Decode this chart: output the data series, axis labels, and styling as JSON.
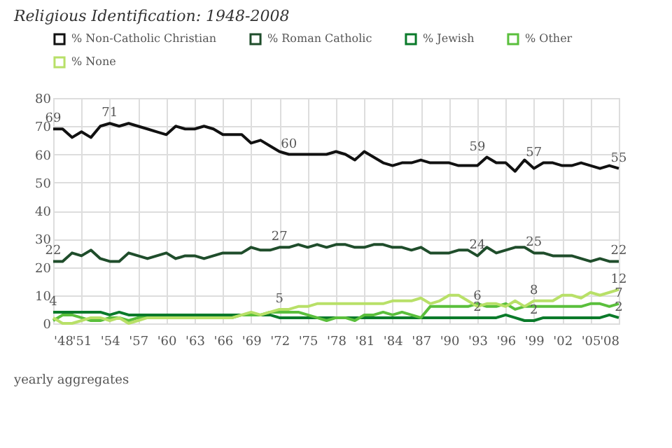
{
  "chart_data": {
    "type": "line",
    "title": "Religious Identification: 1948-2008",
    "x": [
      1948,
      1949,
      1950,
      1951,
      1952,
      1953,
      1954,
      1955,
      1956,
      1957,
      1958,
      1959,
      1960,
      1961,
      1962,
      1963,
      1964,
      1965,
      1966,
      1967,
      1968,
      1969,
      1970,
      1971,
      1972,
      1973,
      1974,
      1975,
      1976,
      1977,
      1978,
      1979,
      1980,
      1981,
      1982,
      1983,
      1984,
      1985,
      1986,
      1987,
      1988,
      1989,
      1990,
      1991,
      1992,
      1993,
      1994,
      1995,
      1996,
      1997,
      1998,
      1999,
      2000,
      2001,
      2002,
      2003,
      2004,
      2005,
      2006,
      2007,
      2008
    ],
    "series": [
      {
        "name": "% Non-Catholic Christian",
        "color": "#111111",
        "values": [
          69,
          69,
          66,
          68,
          66,
          70,
          71,
          70,
          71,
          70,
          69,
          68,
          67,
          70,
          69,
          69,
          70,
          69,
          67,
          67,
          67,
          64,
          65,
          63,
          61,
          60,
          60,
          60,
          60,
          60,
          61,
          60,
          58,
          61,
          59,
          57,
          56,
          57,
          57,
          58,
          57,
          57,
          57,
          56,
          56,
          56,
          59,
          57,
          57,
          54,
          58,
          55,
          57,
          57,
          56,
          56,
          57,
          56,
          55,
          56,
          55
        ]
      },
      {
        "name": "% Roman Catholic",
        "color": "#1f4d2b",
        "values": [
          22,
          22,
          25,
          24,
          26,
          23,
          22,
          22,
          25,
          24,
          23,
          24,
          25,
          23,
          24,
          24,
          23,
          24,
          25,
          25,
          25,
          27,
          26,
          26,
          27,
          27,
          28,
          27,
          28,
          27,
          28,
          28,
          27,
          27,
          28,
          28,
          27,
          27,
          26,
          27,
          25,
          25,
          25,
          26,
          26,
          24,
          27,
          25,
          26,
          27,
          27,
          25,
          25,
          24,
          24,
          24,
          23,
          22,
          23,
          22,
          22
        ]
      },
      {
        "name": "% Jewish",
        "color": "#0a7a2a",
        "values": [
          4,
          4,
          4,
          4,
          4,
          4,
          3,
          4,
          3,
          3,
          3,
          3,
          3,
          3,
          3,
          3,
          3,
          3,
          3,
          3,
          3,
          3,
          3,
          3,
          2,
          2,
          2,
          2,
          2,
          2,
          2,
          2,
          2,
          2,
          2,
          2,
          2,
          2,
          2,
          2,
          2,
          2,
          2,
          2,
          2,
          2,
          2,
          2,
          3,
          2,
          1,
          1,
          2,
          2,
          2,
          2,
          2,
          2,
          2,
          3,
          2
        ]
      },
      {
        "name": "% Other",
        "color": "#5abf3c",
        "values": [
          1,
          3,
          3,
          2,
          1,
          1,
          2,
          2,
          1,
          2,
          2,
          2,
          2,
          2,
          2,
          2,
          2,
          2,
          2,
          2,
          3,
          3,
          3,
          4,
          4,
          4,
          4,
          3,
          2,
          1,
          2,
          2,
          1,
          3,
          3,
          4,
          3,
          4,
          3,
          2,
          6,
          6,
          6,
          6,
          6,
          7,
          6,
          6,
          7,
          5,
          6,
          6,
          6,
          6,
          6,
          6,
          6,
          7,
          7,
          6,
          7
        ]
      },
      {
        "name": "% None",
        "color": "#b8e068",
        "values": [
          2,
          0,
          0,
          1,
          2,
          2,
          1,
          2,
          0,
          1,
          2,
          2,
          2,
          2,
          2,
          2,
          2,
          2,
          2,
          2,
          3,
          4,
          3,
          4,
          5,
          5,
          6,
          6,
          7,
          7,
          7,
          7,
          7,
          7,
          7,
          7,
          8,
          8,
          8,
          9,
          7,
          8,
          10,
          10,
          8,
          6,
          7,
          7,
          6,
          8,
          6,
          8,
          8,
          8,
          10,
          10,
          9,
          11,
          10,
          11,
          12
        ]
      }
    ],
    "xlim": [
      1948,
      2008
    ],
    "xticks": [
      {
        "value": 1948,
        "label": "'48"
      },
      {
        "value": 1951,
        "label": "'51"
      },
      {
        "value": 1954,
        "label": "'54"
      },
      {
        "value": 1957,
        "label": "'57"
      },
      {
        "value": 1960,
        "label": "'60"
      },
      {
        "value": 1963,
        "label": "'63"
      },
      {
        "value": 1966,
        "label": "'66"
      },
      {
        "value": 1969,
        "label": "'69"
      },
      {
        "value": 1972,
        "label": "'72"
      },
      {
        "value": 1975,
        "label": "'75"
      },
      {
        "value": 1978,
        "label": "'78"
      },
      {
        "value": 1981,
        "label": "'81"
      },
      {
        "value": 1984,
        "label": "'84"
      },
      {
        "value": 1987,
        "label": "'87"
      },
      {
        "value": 1990,
        "label": "'90"
      },
      {
        "value": 1993,
        "label": "'93"
      },
      {
        "value": 1996,
        "label": "'96"
      },
      {
        "value": 1999,
        "label": "'99"
      },
      {
        "value": 2002,
        "label": "'02"
      },
      {
        "value": 2005,
        "label": "'05"
      },
      {
        "value": 2008,
        "label": "'08"
      }
    ],
    "ylim": [
      0,
      80
    ],
    "yticks": [
      0,
      10,
      20,
      30,
      40,
      50,
      60,
      70,
      80
    ],
    "grid": true,
    "legend": "top",
    "marker": "none",
    "line_style": "solid",
    "annotations": [
      {
        "text": "69",
        "x": 1948,
        "y": 69
      },
      {
        "text": "71",
        "x": 1954,
        "y": 71
      },
      {
        "text": "60",
        "x": 1973,
        "y": 60
      },
      {
        "text": "59",
        "x": 1993,
        "y": 59
      },
      {
        "text": "57",
        "x": 1999,
        "y": 57
      },
      {
        "text": "55",
        "x": 2008,
        "y": 55
      },
      {
        "text": "22",
        "x": 1948,
        "y": 22
      },
      {
        "text": "27",
        "x": 1972,
        "y": 27
      },
      {
        "text": "24",
        "x": 1993,
        "y": 24
      },
      {
        "text": "25",
        "x": 1999,
        "y": 25
      },
      {
        "text": "22",
        "x": 2008,
        "y": 22
      },
      {
        "text": "4",
        "x": 1948,
        "y": 4
      },
      {
        "text": "5",
        "x": 1972,
        "y": 5
      },
      {
        "text": "6",
        "x": 1993,
        "y": 6
      },
      {
        "text": "2",
        "x": 1993,
        "y": 2
      },
      {
        "text": "8",
        "x": 1999,
        "y": 8
      },
      {
        "text": "2",
        "x": 1999,
        "y": 1
      },
      {
        "text": "12",
        "x": 2008,
        "y": 12
      },
      {
        "text": "7",
        "x": 2008,
        "y": 7
      },
      {
        "text": "2",
        "x": 2008,
        "y": 2
      },
      "yearly aggregates"
    ]
  }
}
